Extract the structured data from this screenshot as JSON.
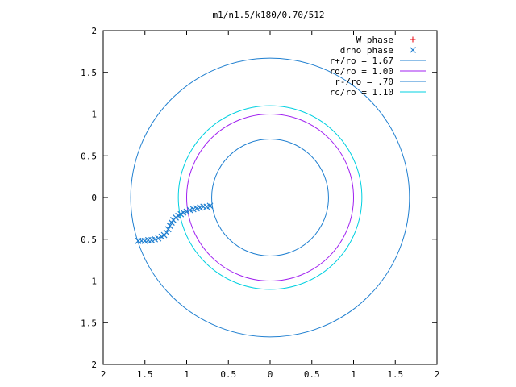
{
  "chart_data": {
    "type": "scatter",
    "title": "m1/n1.5/k180/0.70/512",
    "xlabel": "",
    "ylabel": "",
    "xlim": [
      -2,
      2
    ],
    "ylim": [
      -2,
      2
    ],
    "grid": false,
    "legend_position": "top-right",
    "x_ticks": [
      -2,
      -1.5,
      -1,
      -0.5,
      0,
      0.5,
      1,
      1.5,
      2
    ],
    "x_tick_labels": [
      "2",
      "1.5",
      "1",
      "0.5",
      "0",
      "0.5",
      "1",
      "1.5",
      "2"
    ],
    "y_ticks": [
      2,
      1.5,
      1,
      0.5,
      0,
      -0.5,
      -1,
      -1.5,
      -2
    ],
    "y_tick_labels": [
      "2",
      "1.5",
      "1",
      "0.5",
      "0",
      "0.5",
      "1",
      "1.5",
      "2"
    ],
    "circles": [
      {
        "name": "r+/ro = 1.67",
        "radius": 1.67,
        "color": "#1f7fd0"
      },
      {
        "name": "ro/ro = 1.00",
        "radius": 1.0,
        "color": "#a020f0"
      },
      {
        "name": "r-/ro = .70",
        "radius": 0.7,
        "color": "#1f7fd0"
      },
      {
        "name": "rc/ro = 1.10",
        "radius": 1.1,
        "color": "#00d0e0"
      }
    ],
    "series": [
      {
        "name": "W phase",
        "marker": "+",
        "color": "#e8000b",
        "points": []
      },
      {
        "name": "drho phase",
        "marker": "x",
        "color": "#1f7fd0",
        "points": [
          [
            -1.58,
            -0.52
          ],
          [
            -1.54,
            -0.52
          ],
          [
            -1.5,
            -0.52
          ],
          [
            -1.46,
            -0.51
          ],
          [
            -1.42,
            -0.51
          ],
          [
            -1.38,
            -0.5
          ],
          [
            -1.34,
            -0.49
          ],
          [
            -1.3,
            -0.47
          ],
          [
            -1.27,
            -0.45
          ],
          [
            -1.24,
            -0.42
          ],
          [
            -1.22,
            -0.38
          ],
          [
            -1.2,
            -0.34
          ],
          [
            -1.18,
            -0.3
          ],
          [
            -1.16,
            -0.27
          ],
          [
            -1.13,
            -0.24
          ],
          [
            -1.1,
            -0.22
          ],
          [
            -1.07,
            -0.2
          ],
          [
            -1.04,
            -0.18
          ],
          [
            -1.0,
            -0.17
          ],
          [
            -0.96,
            -0.15
          ],
          [
            -0.92,
            -0.14
          ],
          [
            -0.88,
            -0.13
          ],
          [
            -0.84,
            -0.12
          ],
          [
            -0.8,
            -0.11
          ],
          [
            -0.76,
            -0.11
          ],
          [
            -0.72,
            -0.1
          ]
        ]
      }
    ]
  }
}
